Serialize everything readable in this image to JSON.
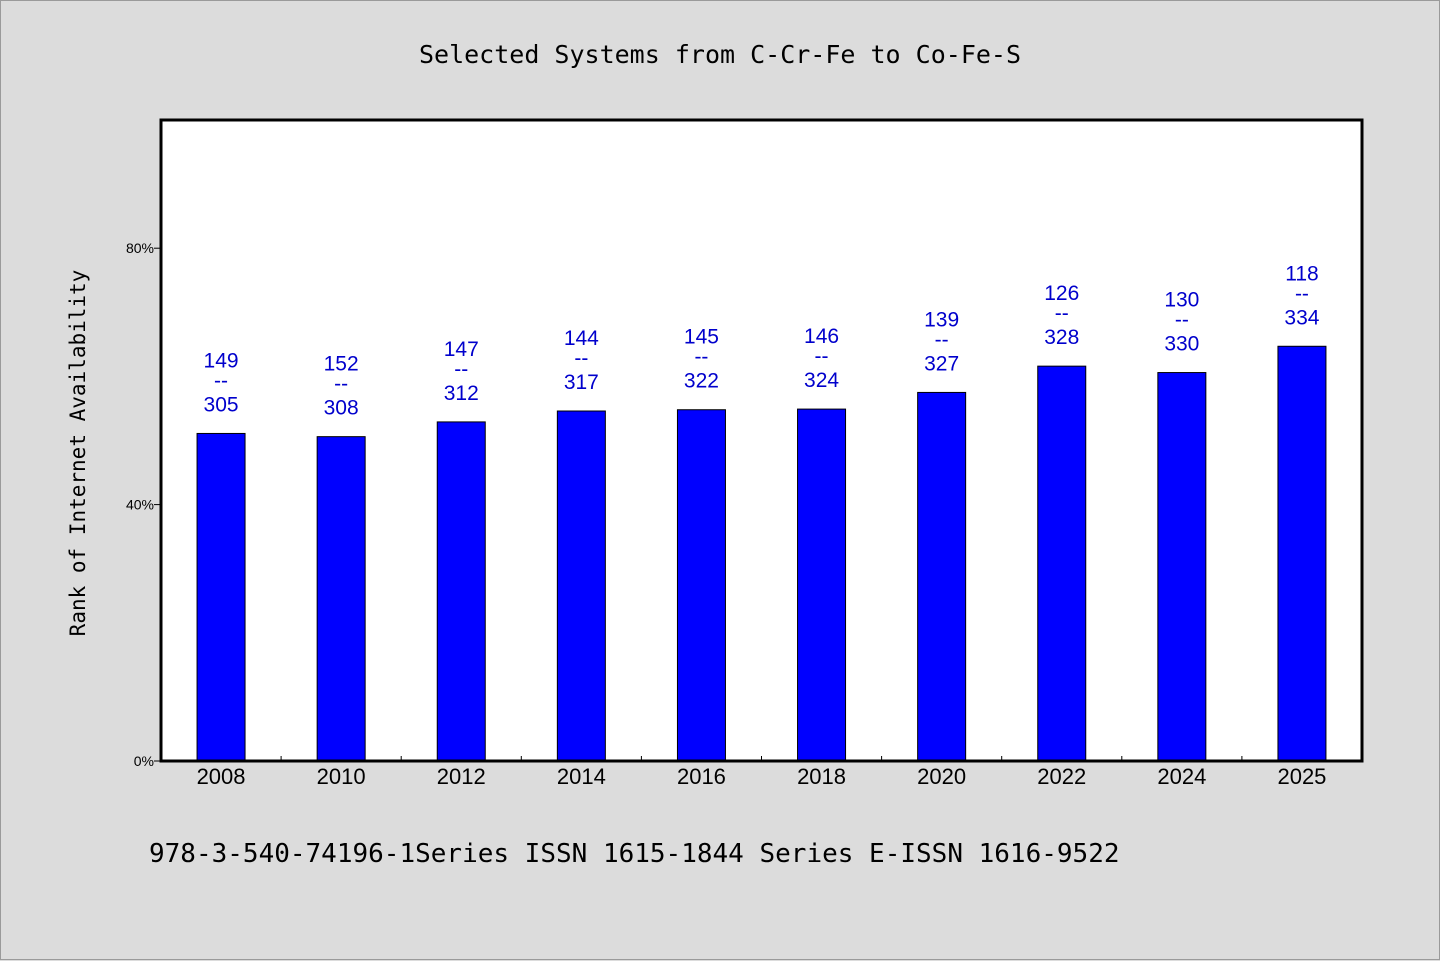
{
  "chart_data": {
    "type": "bar",
    "title": "Selected Systems from C-Cr-Fe to Co-Fe-S",
    "xlabel": "",
    "ylabel": "Rank of Internet Availability",
    "ylim": [
      0,
      100
    ],
    "yticks": [
      {
        "value": 0,
        "label": "0%"
      },
      {
        "value": 40,
        "label": "40%"
      },
      {
        "value": 80,
        "label": "80%"
      }
    ],
    "categories": [
      "2008",
      "2010",
      "2012",
      "2014",
      "2016",
      "2018",
      "2020",
      "2022",
      "2024",
      "2025"
    ],
    "values": [
      51.1,
      50.6,
      52.9,
      54.6,
      54.8,
      54.9,
      57.5,
      61.6,
      60.6,
      64.7
    ],
    "data_labels": [
      {
        "top": "149",
        "sep": "--",
        "bottom": "305"
      },
      {
        "top": "152",
        "sep": "--",
        "bottom": "308"
      },
      {
        "top": "147",
        "sep": "--",
        "bottom": "312"
      },
      {
        "top": "144",
        "sep": "--",
        "bottom": "317"
      },
      {
        "top": "145",
        "sep": "--",
        "bottom": "322"
      },
      {
        "top": "146",
        "sep": "--",
        "bottom": "324"
      },
      {
        "top": "139",
        "sep": "--",
        "bottom": "327"
      },
      {
        "top": "126",
        "sep": "--",
        "bottom": "328"
      },
      {
        "top": "130",
        "sep": "--",
        "bottom": "330"
      },
      {
        "top": "118",
        "sep": "--",
        "bottom": "334"
      }
    ],
    "bar_color": "#0000ff",
    "label_color": "#0000cc",
    "grid": false,
    "legend": "none"
  },
  "footer": "978-3-540-74196-1Series ISSN 1615-1844 Series E-ISSN 1616-9522"
}
